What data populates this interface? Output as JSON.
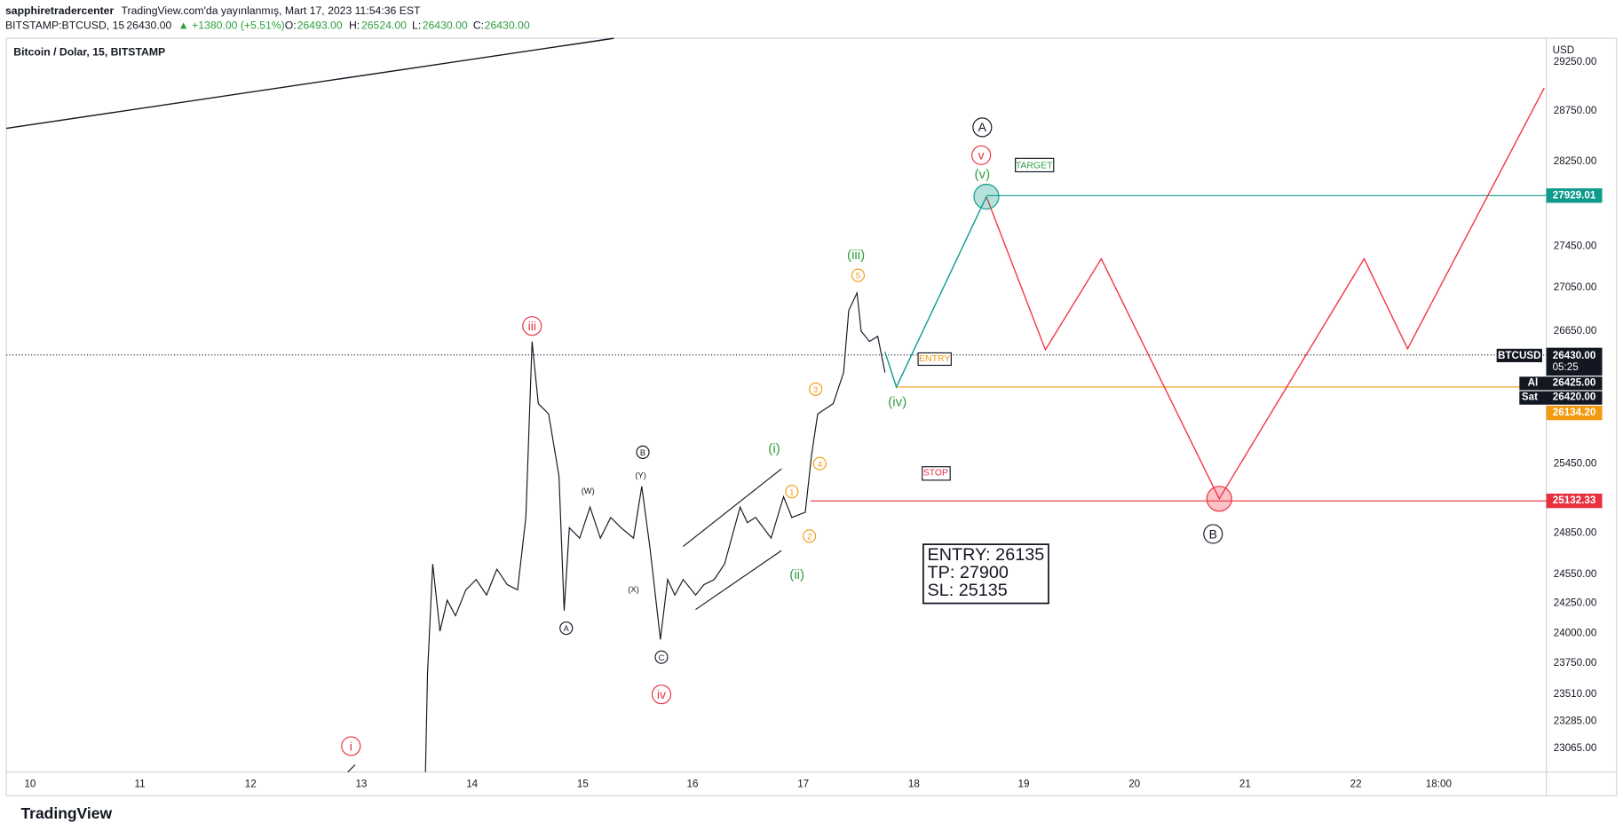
{
  "header": {
    "author": "sapphiretradercenter",
    "published": "TradingView.com'da yayınlanmış, Mart 17, 2023 11:54:36 EST",
    "symbol": "BITSTAMP:BTCUSD, 15",
    "last": "26430.00",
    "change": "▲ +1380.00 (+5.51%)",
    "o_label": "O:",
    "o": "26493.00",
    "h_label": "H:",
    "h": "26524.00",
    "l_label": "L:",
    "l": "26430.00",
    "c_label": "C:",
    "c": "26430.00"
  },
  "chart_title": "Bitcoin / Dolar, 15, BITSTAMP",
  "price_axis": {
    "unit": "USD",
    "labels": [
      "29250.00",
      "28750.00",
      "28250.00",
      "27450.00",
      "27050.00",
      "26650.00",
      "25450.00",
      "24850.00",
      "24550.00",
      "24250.00",
      "24000.00",
      "23750.00",
      "23510.00",
      "23285.00",
      "23065.00"
    ]
  },
  "price_tags": {
    "symbol": "BTCUSD",
    "last": "26430.00",
    "countdown": "05:25",
    "ask_label": "Al",
    "ask": "26425.00",
    "bid_label": "Sat",
    "bid": "26420.00",
    "entry": "26134.20",
    "target": "27929.01",
    "stop": "25132.33"
  },
  "time_axis": [
    "10",
    "11",
    "12",
    "13",
    "14",
    "15",
    "16",
    "17",
    "18",
    "19",
    "20",
    "21",
    "22",
    "18:00"
  ],
  "waves": {
    "red": [
      "i",
      "iii",
      "iv",
      "v"
    ],
    "green": [
      "(i)",
      "(ii)",
      "(iii)",
      "(iv)",
      "(v)"
    ],
    "orange": [
      "1",
      "2",
      "3",
      "4",
      "5"
    ],
    "black": [
      "A",
      "B",
      "(W)",
      "(X)",
      "(Y)",
      "B",
      "A",
      "C"
    ]
  },
  "labels": {
    "target": "TARGET",
    "entry": "ENTRY",
    "stop": "STOP"
  },
  "trade_box": [
    "ENTRY: 26135",
    "TP: 27900",
    "SL: 25135"
  ],
  "footer": "TradingView"
}
